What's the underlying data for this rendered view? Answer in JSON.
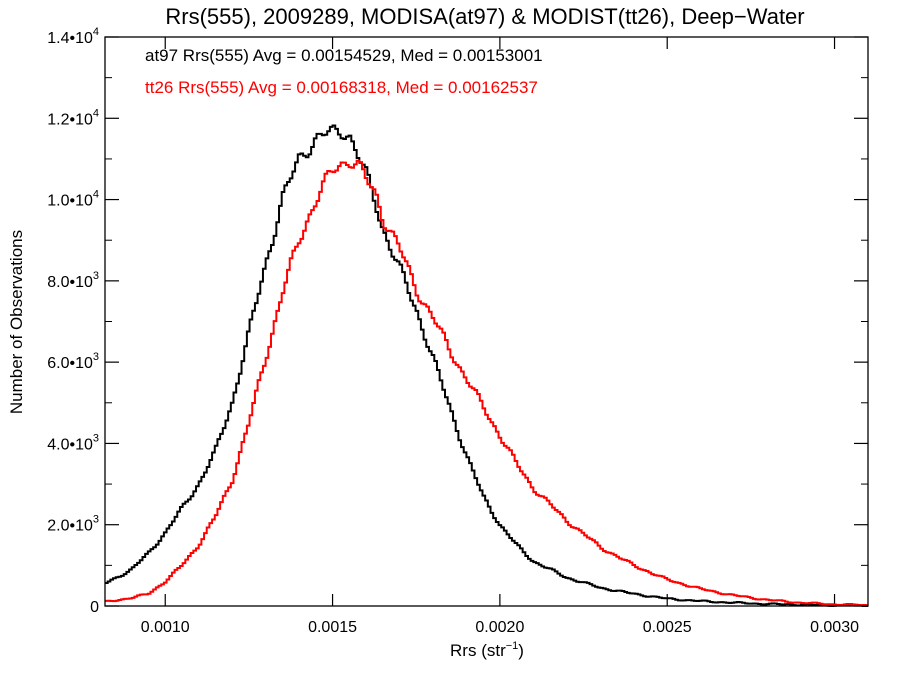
{
  "chart_data": {
    "type": "line",
    "step": true,
    "title": "Rrs(555), 2009289, MODISA(at97) & MODIST(tt26), Deep−Water",
    "xlabel": "Rrs (str",
    "xlabel_sup": "−1",
    "xlabel_end": ")",
    "ylabel": "Number of Observations",
    "xlim": [
      0.00082,
      0.0031
    ],
    "ylim": [
      0,
      14000
    ],
    "xticks": [
      {
        "value": 0.001,
        "label": "0.0010"
      },
      {
        "value": 0.0015,
        "label": "0.0015"
      },
      {
        "value": 0.002,
        "label": "0.0020"
      },
      {
        "value": 0.0025,
        "label": "0.0025"
      },
      {
        "value": 0.003,
        "label": "0.0030"
      }
    ],
    "yticks": [
      {
        "value": 0,
        "label": "0",
        "sup": ""
      },
      {
        "value": 2000,
        "label": "2.0•10",
        "sup": "3"
      },
      {
        "value": 4000,
        "label": "4.0•10",
        "sup": "3"
      },
      {
        "value": 6000,
        "label": "6.0•10",
        "sup": "3"
      },
      {
        "value": 8000,
        "label": "8.0•10",
        "sup": "3"
      },
      {
        "value": 10000,
        "label": "1.0•10",
        "sup": "4"
      },
      {
        "value": 12000,
        "label": "1.2•10",
        "sup": "4"
      },
      {
        "value": 14000,
        "label": "1.4•10",
        "sup": "4"
      }
    ],
    "annotations": [
      {
        "text": "at97 Rrs(555) Avg = 0.00154529, Med = 0.00153001",
        "color": "#000000"
      },
      {
        "text": "tt26 Rrs(555) Avg = 0.00168318, Med = 0.00162537",
        "color": "#ff0000"
      }
    ],
    "series": [
      {
        "color": "#000000",
        "x": [
          0.00082,
          0.0009,
          0.00095,
          0.001,
          0.00105,
          0.0011,
          0.00115,
          0.0012,
          0.00125,
          0.0013,
          0.00135,
          0.0014,
          0.00145,
          0.00148,
          0.0015,
          0.00153,
          0.00155,
          0.00157,
          0.0016,
          0.00163,
          0.00165,
          0.0017,
          0.00175,
          0.0018,
          0.00185,
          0.0019,
          0.00195,
          0.002,
          0.00205,
          0.0021,
          0.00215,
          0.0022,
          0.0023,
          0.0024,
          0.0025,
          0.0026,
          0.0027,
          0.0028,
          0.0029,
          0.003,
          0.0031
        ],
        "y": [
          550,
          900,
          1300,
          1800,
          2400,
          3000,
          3800,
          5000,
          6700,
          8400,
          10000,
          11000,
          11500,
          11600,
          11650,
          11700,
          11600,
          11200,
          10600,
          9900,
          9300,
          8300,
          7300,
          6100,
          4900,
          3700,
          2700,
          2000,
          1500,
          1100,
          900,
          700,
          450,
          300,
          180,
          120,
          80,
          50,
          30,
          20,
          10
        ]
      },
      {
        "color": "#ff0000",
        "x": [
          0.00082,
          0.0009,
          0.00095,
          0.001,
          0.00105,
          0.0011,
          0.00115,
          0.0012,
          0.00125,
          0.0013,
          0.00135,
          0.0014,
          0.00145,
          0.0015,
          0.00153,
          0.00155,
          0.00158,
          0.0016,
          0.00163,
          0.00165,
          0.0017,
          0.00175,
          0.0018,
          0.00185,
          0.0019,
          0.00195,
          0.002,
          0.00205,
          0.0021,
          0.0022,
          0.0023,
          0.0024,
          0.0025,
          0.0026,
          0.0027,
          0.0028,
          0.0029,
          0.003,
          0.0031
        ],
        "y": [
          100,
          200,
          300,
          600,
          1000,
          1500,
          2200,
          3100,
          4500,
          6100,
          7700,
          9000,
          10000,
          10700,
          10900,
          11000,
          10800,
          10500,
          10100,
          9600,
          8800,
          7800,
          7100,
          6300,
          5600,
          4900,
          4200,
          3500,
          2900,
          2100,
          1450,
          1000,
          650,
          420,
          260,
          150,
          80,
          40,
          20
        ]
      }
    ]
  }
}
